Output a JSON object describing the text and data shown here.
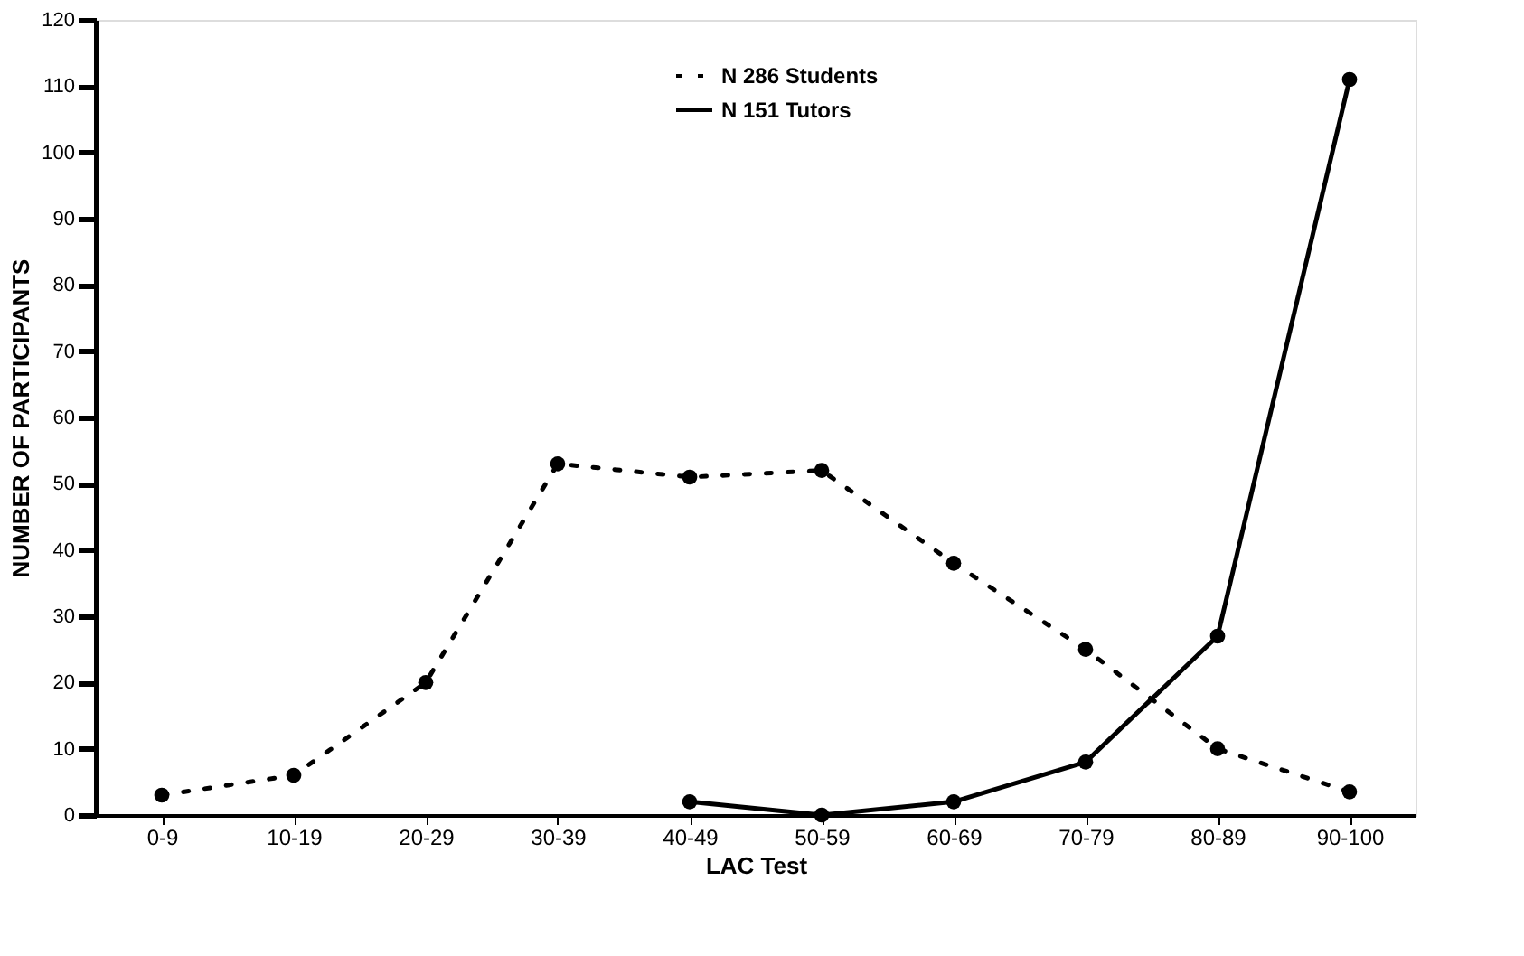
{
  "chart_data": {
    "type": "line",
    "xlabel": "LAC Test",
    "ylabel": "NUMBER OF PARTICIPANTS",
    "categories": [
      "0-9",
      "10-19",
      "20-29",
      "30-39",
      "40-49",
      "50-59",
      "60-69",
      "70-79",
      "80-89",
      "90-100"
    ],
    "series": [
      {
        "name": "N 286 Students",
        "color": "#000000",
        "line_style": "dotted",
        "values": [
          3,
          6,
          20,
          53,
          51,
          52,
          38,
          25,
          10,
          3.5
        ]
      },
      {
        "name": "N 151 Tutors",
        "color": "#000000",
        "line_style": "solid",
        "values": [
          null,
          null,
          null,
          null,
          2,
          0,
          2,
          8,
          27,
          111
        ]
      }
    ],
    "ylim": [
      0,
      120
    ],
    "yticks": [
      0,
      10,
      20,
      30,
      40,
      50,
      60,
      70,
      80,
      90,
      100,
      110,
      120
    ],
    "grid": false,
    "legend": "top",
    "marker": "circle"
  }
}
